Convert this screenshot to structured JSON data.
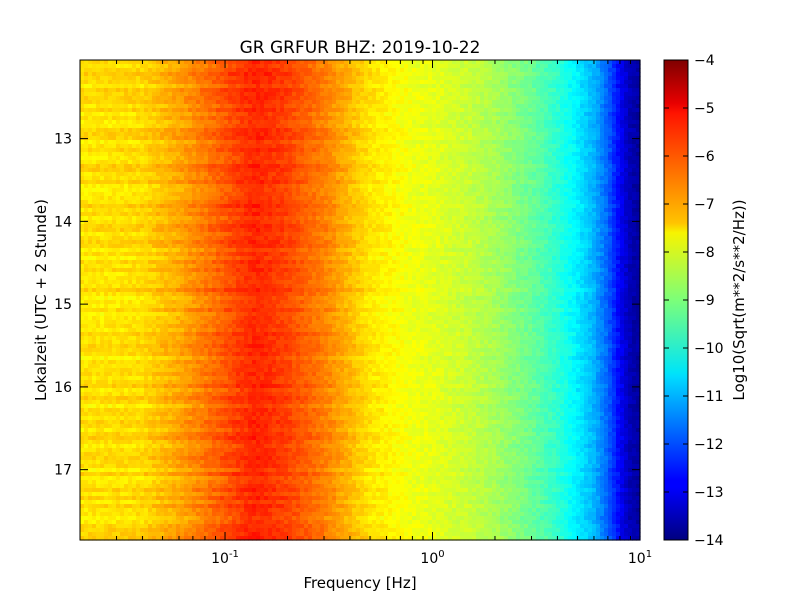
{
  "chart_data": {
    "type": "heatmap",
    "title": "GR GRFUR BHZ: 2019-10-22",
    "xlabel": "Frequency [Hz]",
    "ylabel": "Lokalzeit (UTC + 2 Stunde)",
    "x_scale": "log",
    "xlim": [
      0.02,
      10
    ],
    "x_ticks": [
      {
        "value": 0.1,
        "base": "10",
        "exp": "-1"
      },
      {
        "value": 1,
        "base": "10",
        "exp": "0"
      },
      {
        "value": 10,
        "base": "10",
        "exp": "1"
      }
    ],
    "ylim": [
      12.05,
      17.85
    ],
    "y_inverted": true,
    "y_ticks": [
      {
        "value": 13,
        "label": "13"
      },
      {
        "value": 14,
        "label": "14"
      },
      {
        "value": 15,
        "label": "15"
      },
      {
        "value": 16,
        "label": "16"
      },
      {
        "value": 17,
        "label": "17"
      }
    ],
    "colorbar": {
      "label": "Log10(Sqrt(m**2/s**2/Hz))",
      "colormap": "jet",
      "range": [
        -14,
        -4
      ],
      "ticks": [
        "-4",
        "-5",
        "-6",
        "-7",
        "-8",
        "-9",
        "-10",
        "-11",
        "-12",
        "-13",
        "-14"
      ]
    },
    "spectrum_profile": [
      {
        "f": 0.02,
        "v": -7.5
      },
      {
        "f": 0.04,
        "v": -7.4
      },
      {
        "f": 0.06,
        "v": -6.9
      },
      {
        "f": 0.12,
        "v": -5.8
      },
      {
        "f": 0.14,
        "v": -5.6
      },
      {
        "f": 0.2,
        "v": -5.9
      },
      {
        "f": 0.3,
        "v": -6.5
      },
      {
        "f": 0.5,
        "v": -7.5
      },
      {
        "f": 0.8,
        "v": -7.9
      },
      {
        "f": 1.0,
        "v": -8.0
      },
      {
        "f": 1.5,
        "v": -8.3
      },
      {
        "f": 2.0,
        "v": -8.6
      },
      {
        "f": 3.0,
        "v": -9.2
      },
      {
        "f": 4.0,
        "v": -9.8
      },
      {
        "f": 5.0,
        "v": -10.4
      },
      {
        "f": 6.0,
        "v": -11.0
      },
      {
        "f": 7.0,
        "v": -11.8
      },
      {
        "f": 8.0,
        "v": -12.8
      },
      {
        "f": 9.0,
        "v": -13.5
      },
      {
        "f": 10.0,
        "v": -13.7
      }
    ]
  }
}
